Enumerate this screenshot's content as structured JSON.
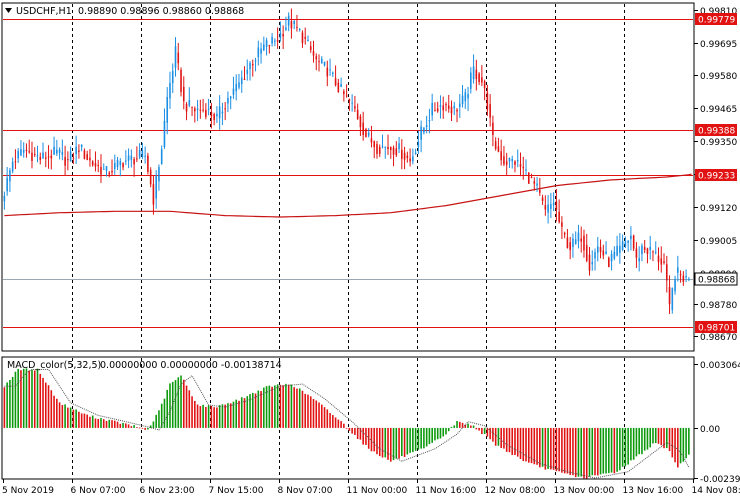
{
  "main_header": {
    "symbol_tf": "USDCHF,H1",
    "ohlc": "0.98890 0.98896 0.98860 0.98868"
  },
  "macd_header": {
    "label": "MACD_color(5,32,5)",
    "values": "0.00000000 0.00000000 -0.00138714"
  },
  "colors": {
    "up": "#1a8fe3",
    "down": "#e11212",
    "ma": "#c81414",
    "hline": "#e11212",
    "hist_up": "#0c9a0c",
    "hist_down": "#e11212",
    "grid": "#000000",
    "tag_bg": "#e11212",
    "bid_tag_bg": "#ffffff"
  },
  "chart_data": [
    {
      "type": "candlestick",
      "ylim": [
        0.9862,
        0.9983
      ],
      "y_ticks": [
        "0.99810",
        "0.99695",
        "0.99580",
        "0.99465",
        "0.99350",
        "0.99235",
        "0.99120",
        "0.99005",
        "0.98890",
        "0.98780",
        "0.98670"
      ],
      "horizontal_lines": [
        {
          "label": "0.99779",
          "value": 0.99779
        },
        {
          "label": "0.99388",
          "value": 0.99388
        },
        {
          "label": "0.99233",
          "value": 0.99233
        },
        {
          "label": "0.98701",
          "value": 0.98701
        }
      ],
      "current_price": {
        "label": "0.98868",
        "value": 0.98868
      },
      "moving_average": [
        [
          0,
          0.9909
        ],
        [
          20,
          0.991
        ],
        [
          40,
          0.99105
        ],
        [
          60,
          0.99105
        ],
        [
          80,
          0.9909
        ],
        [
          100,
          0.99085
        ],
        [
          120,
          0.9909
        ],
        [
          140,
          0.991
        ],
        [
          160,
          0.99125
        ],
        [
          180,
          0.9916
        ],
        [
          200,
          0.99195
        ],
        [
          220,
          0.99215
        ],
        [
          240,
          0.99225
        ],
        [
          250,
          0.99235
        ]
      ],
      "anchors": [
        [
          0,
          0.9914
        ],
        [
          4,
          0.9928
        ],
        [
          8,
          0.9932
        ],
        [
          14,
          0.9929
        ],
        [
          20,
          0.9931
        ],
        [
          24,
          0.9928
        ],
        [
          28,
          0.9933
        ],
        [
          32,
          0.9928
        ],
        [
          38,
          0.9924
        ],
        [
          44,
          0.9928
        ],
        [
          48,
          0.9929
        ],
        [
          52,
          0.993
        ],
        [
          55,
          0.9915
        ],
        [
          58,
          0.9933
        ],
        [
          60,
          0.995
        ],
        [
          63,
          0.9966
        ],
        [
          66,
          0.9948
        ],
        [
          70,
          0.9946
        ],
        [
          74,
          0.9946
        ],
        [
          78,
          0.9943
        ],
        [
          82,
          0.995
        ],
        [
          86,
          0.9955
        ],
        [
          90,
          0.9962
        ],
        [
          95,
          0.9968
        ],
        [
          100,
          0.9971
        ],
        [
          104,
          0.9977
        ],
        [
          108,
          0.9973
        ],
        [
          110,
          0.997
        ],
        [
          114,
          0.9963
        ],
        [
          118,
          0.996
        ],
        [
          124,
          0.9951
        ],
        [
          128,
          0.9946
        ],
        [
          132,
          0.9937
        ],
        [
          136,
          0.9933
        ],
        [
          140,
          0.9933
        ],
        [
          144,
          0.9932
        ],
        [
          148,
          0.9928
        ],
        [
          152,
          0.9938
        ],
        [
          156,
          0.9946
        ],
        [
          160,
          0.9948
        ],
        [
          164,
          0.9946
        ],
        [
          168,
          0.995
        ],
        [
          171,
          0.996
        ],
        [
          174,
          0.9956
        ],
        [
          176,
          0.9948
        ],
        [
          178,
          0.9935
        ],
        [
          182,
          0.9928
        ],
        [
          186,
          0.9928
        ],
        [
          190,
          0.9924
        ],
        [
          194,
          0.9918
        ],
        [
          197,
          0.991
        ],
        [
          200,
          0.9914
        ],
        [
          203,
          0.9903
        ],
        [
          206,
          0.9898
        ],
        [
          210,
          0.9902
        ],
        [
          213,
          0.9892
        ],
        [
          216,
          0.9898
        ],
        [
          220,
          0.9893
        ],
        [
          224,
          0.9897
        ],
        [
          228,
          0.9902
        ],
        [
          230,
          0.9893
        ],
        [
          232,
          0.9898
        ],
        [
          236,
          0.9896
        ],
        [
          240,
          0.9892
        ],
        [
          242,
          0.9876
        ],
        [
          244,
          0.9889
        ],
        [
          246,
          0.9888
        ],
        [
          248,
          0.98868
        ]
      ],
      "x_labels": [
        "5 Nov 2019",
        "6 Nov 07:00",
        "6 Nov 23:00",
        "7 Nov 15:00",
        "8 Nov 07:00",
        "11 Nov 00:00",
        "11 Nov 16:00",
        "12 Nov 08:00",
        "13 Nov 00:00",
        "13 Nov 16:00",
        "14 Nov 08:00"
      ]
    },
    {
      "type": "bar",
      "name": "MACD_color(5,32,5)",
      "ylim": [
        -0.0024,
        0.00335
      ],
      "y_ticks": [
        "0.0030645",
        "0.00",
        "-0.002399"
      ],
      "anchors": [
        [
          0,
          0.002
        ],
        [
          5,
          0.0028
        ],
        [
          12,
          0.0028
        ],
        [
          20,
          0.0012
        ],
        [
          30,
          0.0006
        ],
        [
          40,
          0.0003
        ],
        [
          48,
          5e-05
        ],
        [
          52,
          -0.0001
        ],
        [
          56,
          0.0008
        ],
        [
          60,
          0.0021
        ],
        [
          64,
          0.0025
        ],
        [
          70,
          0.0011
        ],
        [
          76,
          0.001
        ],
        [
          84,
          0.0013
        ],
        [
          96,
          0.002
        ],
        [
          104,
          0.0021
        ],
        [
          112,
          0.0014
        ],
        [
          122,
          0.0003
        ],
        [
          132,
          -0.001
        ],
        [
          140,
          -0.0016
        ],
        [
          152,
          -0.001
        ],
        [
          160,
          -0.0003
        ],
        [
          164,
          0.0003
        ],
        [
          170,
          0.0001
        ],
        [
          178,
          -0.0008
        ],
        [
          190,
          -0.0017
        ],
        [
          200,
          -0.0021
        ],
        [
          210,
          -0.0024
        ],
        [
          222,
          -0.0021
        ],
        [
          232,
          -0.0011
        ],
        [
          236,
          -0.0007
        ],
        [
          241,
          -0.0011
        ],
        [
          244,
          -0.0019
        ],
        [
          247,
          -0.0014
        ],
        [
          248,
          -0.0013
        ]
      ]
    }
  ]
}
